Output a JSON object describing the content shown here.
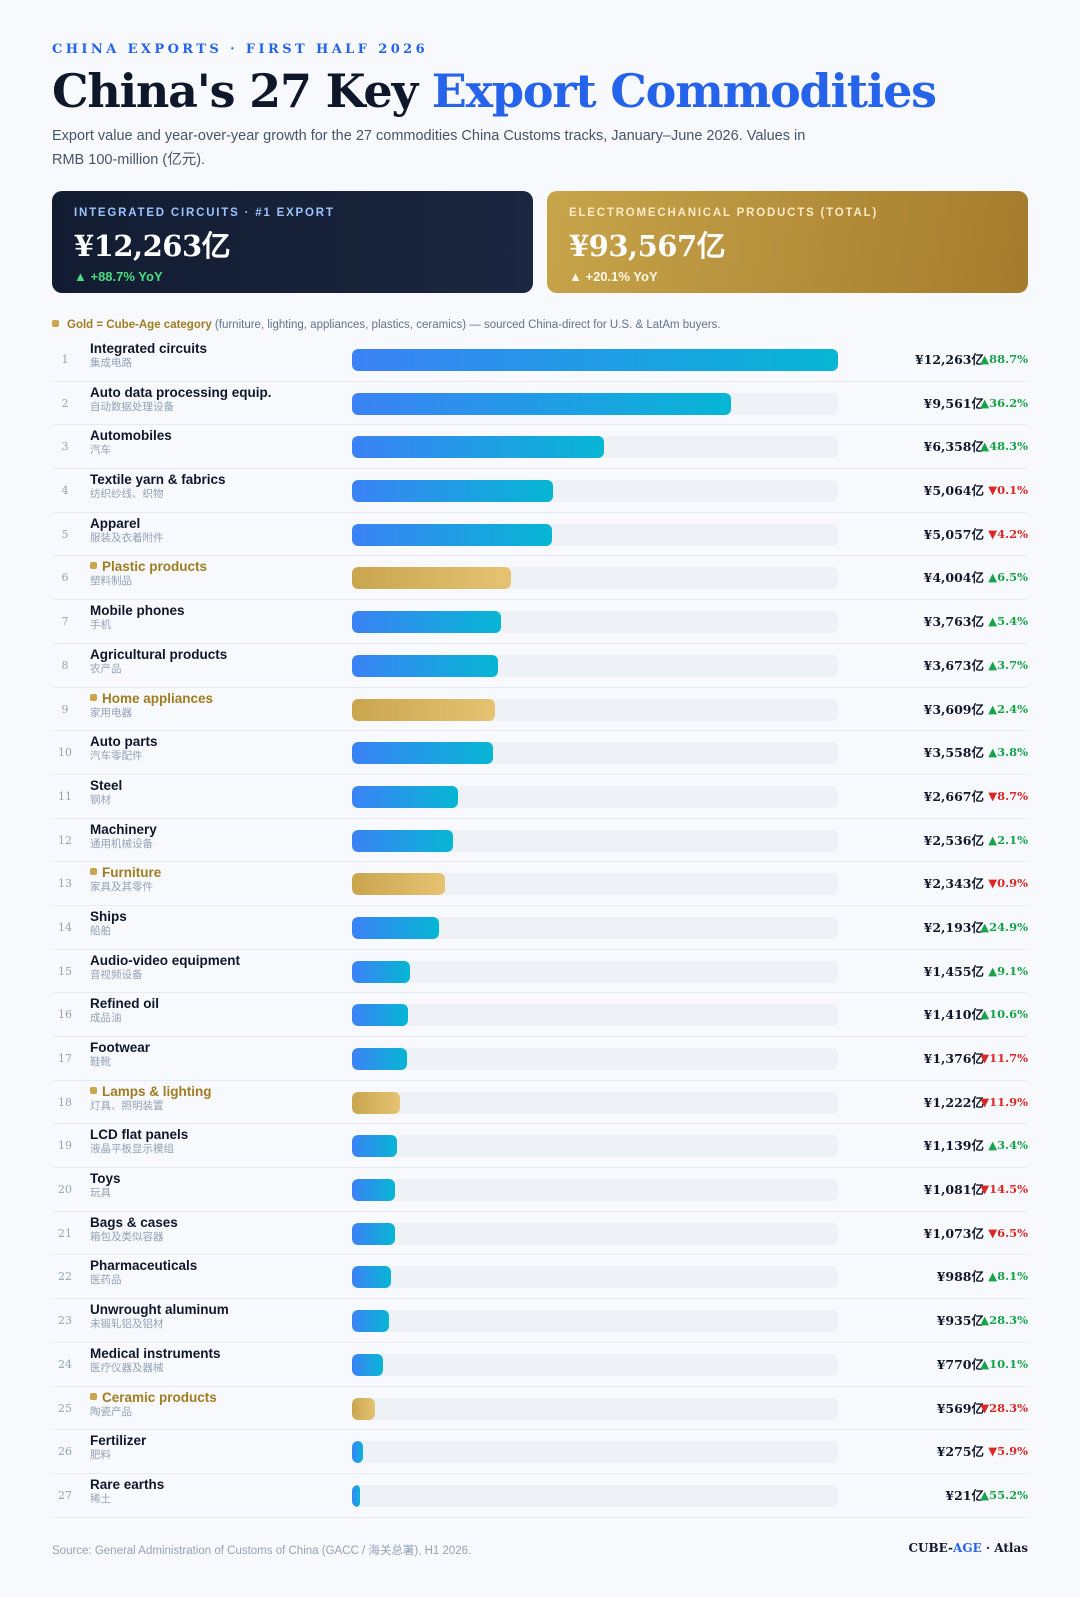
{
  "header": {
    "kicker": "CHINA EXPORTS · FIRST HALF 2026",
    "title_main": "China's 27 Key ",
    "title_accent": "Export Commodities",
    "subtitle": "Export value and year-over-year growth for the 27 commodities China Customs tracks, January–June 2026. Values in RMB 100-million (亿元)."
  },
  "cards": {
    "top_export": {
      "label": "INTEGRATED CIRCUITS · #1 EXPORT",
      "value": "¥12,263亿",
      "yoy": "▲ +88.7% YoY"
    },
    "total": {
      "label": "ELECTROMECHANICAL PRODUCTS (TOTAL)",
      "value": "¥93,567亿",
      "yoy": "▲ +20.1% YoY"
    }
  },
  "legend_note": {
    "strong": "Gold = Cube-Age category",
    "rest": " (furniture, lighting, appliances, plastics, ceramics) — sourced China-direct for U.S. & LatAm buyers."
  },
  "colors": {
    "blue_bar_start": "#3b82f6",
    "blue_bar_end": "#06b6d4",
    "gold_bar_start": "#c9a54e",
    "gold_bar_end": "#e6c372",
    "up": "#16a34a",
    "down": "#dc2626",
    "accent": "#2563eb"
  },
  "chart_data": {
    "type": "bar",
    "orientation": "horizontal",
    "value_unit": "亿",
    "xlim": [
      0,
      12263
    ],
    "rows": [
      {
        "rank": "1",
        "name": "Integrated circuits",
        "name_cn": "集成电路",
        "value": 12263,
        "value_label": "¥12,263亿",
        "yoy": 88.7,
        "yoy_label": "▲88.7%",
        "cube_age": false
      },
      {
        "rank": "2",
        "name": "Auto data processing equip.",
        "name_cn": "自动数据处理设备",
        "value": 9561,
        "value_label": "¥9,561亿",
        "yoy": 36.2,
        "yoy_label": "▲36.2%",
        "cube_age": false
      },
      {
        "rank": "3",
        "name": "Automobiles",
        "name_cn": "汽车",
        "value": 6358,
        "value_label": "¥6,358亿",
        "yoy": 48.3,
        "yoy_label": "▲48.3%",
        "cube_age": false
      },
      {
        "rank": "4",
        "name": "Textile yarn & fabrics",
        "name_cn": "纺织纱线、织物",
        "value": 5064,
        "value_label": "¥5,064亿",
        "yoy": -0.1,
        "yoy_label": "▼0.1%",
        "cube_age": false
      },
      {
        "rank": "5",
        "name": "Apparel",
        "name_cn": "服装及衣着附件",
        "value": 5057,
        "value_label": "¥5,057亿",
        "yoy": -4.2,
        "yoy_label": "▼4.2%",
        "cube_age": false
      },
      {
        "rank": "6",
        "name": "Plastic products",
        "name_cn": "塑料制品",
        "value": 4004,
        "value_label": "¥4,004亿",
        "yoy": 6.5,
        "yoy_label": "▲6.5%",
        "cube_age": true
      },
      {
        "rank": "7",
        "name": "Mobile phones",
        "name_cn": "手机",
        "value": 3763,
        "value_label": "¥3,763亿",
        "yoy": 5.4,
        "yoy_label": "▲5.4%",
        "cube_age": false
      },
      {
        "rank": "8",
        "name": "Agricultural products",
        "name_cn": "农产品",
        "value": 3673,
        "value_label": "¥3,673亿",
        "yoy": 3.7,
        "yoy_label": "▲3.7%",
        "cube_age": false
      },
      {
        "rank": "9",
        "name": "Home appliances",
        "name_cn": "家用电器",
        "value": 3609,
        "value_label": "¥3,609亿",
        "yoy": 2.4,
        "yoy_label": "▲2.4%",
        "cube_age": true
      },
      {
        "rank": "10",
        "name": "Auto parts",
        "name_cn": "汽车零配件",
        "value": 3558,
        "value_label": "¥3,558亿",
        "yoy": 3.8,
        "yoy_label": "▲3.8%",
        "cube_age": false
      },
      {
        "rank": "11",
        "name": "Steel",
        "name_cn": "钢材",
        "value": 2667,
        "value_label": "¥2,667亿",
        "yoy": -8.7,
        "yoy_label": "▼8.7%",
        "cube_age": false
      },
      {
        "rank": "12",
        "name": "Machinery",
        "name_cn": "通用机械设备",
        "value": 2536,
        "value_label": "¥2,536亿",
        "yoy": 2.1,
        "yoy_label": "▲2.1%",
        "cube_age": false
      },
      {
        "rank": "13",
        "name": "Furniture",
        "name_cn": "家具及其零件",
        "value": 2343,
        "value_label": "¥2,343亿",
        "yoy": -0.9,
        "yoy_label": "▼0.9%",
        "cube_age": true
      },
      {
        "rank": "14",
        "name": "Ships",
        "name_cn": "船舶",
        "value": 2193,
        "value_label": "¥2,193亿",
        "yoy": 24.9,
        "yoy_label": "▲24.9%",
        "cube_age": false
      },
      {
        "rank": "15",
        "name": "Audio-video equipment",
        "name_cn": "音视频设备",
        "value": 1455,
        "value_label": "¥1,455亿",
        "yoy": 9.1,
        "yoy_label": "▲9.1%",
        "cube_age": false
      },
      {
        "rank": "16",
        "name": "Refined oil",
        "name_cn": "成品油",
        "value": 1410,
        "value_label": "¥1,410亿",
        "yoy": 10.6,
        "yoy_label": "▲10.6%",
        "cube_age": false
      },
      {
        "rank": "17",
        "name": "Footwear",
        "name_cn": "鞋靴",
        "value": 1376,
        "value_label": "¥1,376亿",
        "yoy": -11.7,
        "yoy_label": "▼11.7%",
        "cube_age": false
      },
      {
        "rank": "18",
        "name": "Lamps & lighting",
        "name_cn": "灯具、照明装置",
        "value": 1222,
        "value_label": "¥1,222亿",
        "yoy": -11.9,
        "yoy_label": "▼11.9%",
        "cube_age": true
      },
      {
        "rank": "19",
        "name": "LCD flat panels",
        "name_cn": "液晶平板显示模组",
        "value": 1139,
        "value_label": "¥1,139亿",
        "yoy": 3.4,
        "yoy_label": "▲3.4%",
        "cube_age": false
      },
      {
        "rank": "20",
        "name": "Toys",
        "name_cn": "玩具",
        "value": 1081,
        "value_label": "¥1,081亿",
        "yoy": -14.5,
        "yoy_label": "▼14.5%",
        "cube_age": false
      },
      {
        "rank": "21",
        "name": "Bags & cases",
        "name_cn": "箱包及类似容器",
        "value": 1073,
        "value_label": "¥1,073亿",
        "yoy": -6.5,
        "yoy_label": "▼6.5%",
        "cube_age": false
      },
      {
        "rank": "22",
        "name": "Pharmaceuticals",
        "name_cn": "医药品",
        "value": 988,
        "value_label": "¥988亿",
        "yoy": 8.1,
        "yoy_label": "▲8.1%",
        "cube_age": false
      },
      {
        "rank": "23",
        "name": "Unwrought aluminum",
        "name_cn": "未锻轧铝及铝材",
        "value": 935,
        "value_label": "¥935亿",
        "yoy": 28.3,
        "yoy_label": "▲28.3%",
        "cube_age": false
      },
      {
        "rank": "24",
        "name": "Medical instruments",
        "name_cn": "医疗仪器及器械",
        "value": 770,
        "value_label": "¥770亿",
        "yoy": 10.1,
        "yoy_label": "▲10.1%",
        "cube_age": false
      },
      {
        "rank": "25",
        "name": "Ceramic products",
        "name_cn": "陶瓷产品",
        "value": 569,
        "value_label": "¥569亿",
        "yoy": -28.3,
        "yoy_label": "▼28.3%",
        "cube_age": true
      },
      {
        "rank": "26",
        "name": "Fertilizer",
        "name_cn": "肥料",
        "value": 275,
        "value_label": "¥275亿",
        "yoy": -5.9,
        "yoy_label": "▼5.9%",
        "cube_age": false
      },
      {
        "rank": "27",
        "name": "Rare earths",
        "name_cn": "稀土",
        "value": 21,
        "value_label": "¥21亿",
        "yoy": 55.2,
        "yoy_label": "▲55.2%",
        "cube_age": false
      }
    ]
  },
  "footer": {
    "source": "Source: General Administration of Customs of China (GACC / 海关总署), H1 2026.",
    "brand_a": "CUBE-",
    "brand_b": "AGE",
    "brand_c": " · Atlas"
  }
}
